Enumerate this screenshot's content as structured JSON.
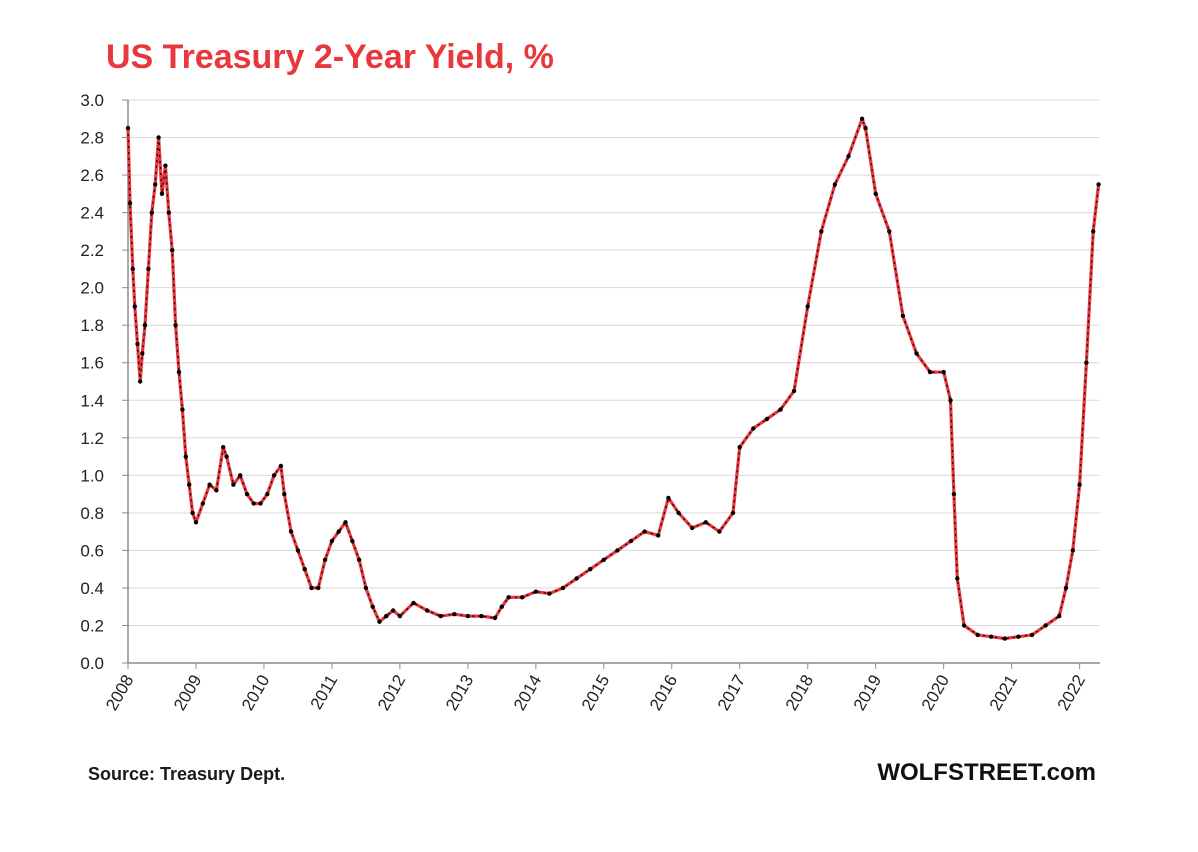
{
  "chart_data": {
    "type": "line",
    "title": "US Treasury 2-Year Yield, %",
    "xlabel": "",
    "ylabel": "",
    "xlim": [
      2008.0,
      2022.3
    ],
    "ylim": [
      0,
      3.0
    ],
    "y_ticks": [
      "0.0",
      "0.2",
      "0.4",
      "0.6",
      "0.8",
      "1.0",
      "1.2",
      "1.4",
      "1.6",
      "1.8",
      "2.0",
      "2.2",
      "2.4",
      "2.6",
      "2.8",
      "3.0"
    ],
    "x_ticks": [
      "2008",
      "2009",
      "2010",
      "2011",
      "2012",
      "2013",
      "2014",
      "2015",
      "2016",
      "2017",
      "2018",
      "2019",
      "2020",
      "2021",
      "2022"
    ],
    "grid": true,
    "legend": "none",
    "colors": {
      "title": "#e8383d",
      "line": "#e8383d",
      "markers": "#000000",
      "grid": "#d9d9d9",
      "axis": "#8c8c8c"
    },
    "series": [
      {
        "x": [
          2008.0,
          2008.03,
          2008.07,
          2008.1,
          2008.14,
          2008.18,
          2008.21,
          2008.25,
          2008.3,
          2008.35,
          2008.4,
          2008.45,
          2008.5,
          2008.55,
          2008.6,
          2008.65,
          2008.7,
          2008.75,
          2008.8,
          2008.85,
          2008.9,
          2008.95,
          2009.0,
          2009.1,
          2009.2,
          2009.3,
          2009.4,
          2009.45,
          2009.55,
          2009.65,
          2009.75,
          2009.85,
          2009.95,
          2010.05,
          2010.15,
          2010.25,
          2010.3,
          2010.4,
          2010.5,
          2010.6,
          2010.7,
          2010.8,
          2010.9,
          2011.0,
          2011.1,
          2011.2,
          2011.3,
          2011.4,
          2011.5,
          2011.6,
          2011.7,
          2011.8,
          2011.9,
          2012.0,
          2012.2,
          2012.4,
          2012.6,
          2012.8,
          2013.0,
          2013.2,
          2013.4,
          2013.5,
          2013.6,
          2013.8,
          2014.0,
          2014.2,
          2014.4,
          2014.6,
          2014.8,
          2015.0,
          2015.2,
          2015.4,
          2015.6,
          2015.8,
          2015.95,
          2016.1,
          2016.3,
          2016.5,
          2016.7,
          2016.9,
          2017.0,
          2017.2,
          2017.4,
          2017.6,
          2017.8,
          2018.0,
          2018.2,
          2018.4,
          2018.6,
          2018.8,
          2018.85,
          2019.0,
          2019.2,
          2019.4,
          2019.6,
          2019.8,
          2020.0,
          2020.1,
          2020.15,
          2020.2,
          2020.3,
          2020.5,
          2020.7,
          2020.9,
          2021.1,
          2021.3,
          2021.5,
          2021.7,
          2021.8,
          2021.9,
          2022.0,
          2022.1,
          2022.2,
          2022.28
        ],
        "values": [
          2.85,
          2.45,
          2.1,
          1.9,
          1.7,
          1.5,
          1.65,
          1.8,
          2.1,
          2.4,
          2.55,
          2.8,
          2.5,
          2.65,
          2.4,
          2.2,
          1.8,
          1.55,
          1.35,
          1.1,
          0.95,
          0.8,
          0.75,
          0.85,
          0.95,
          0.92,
          1.15,
          1.1,
          0.95,
          1.0,
          0.9,
          0.85,
          0.85,
          0.9,
          1.0,
          1.05,
          0.9,
          0.7,
          0.6,
          0.5,
          0.4,
          0.4,
          0.55,
          0.65,
          0.7,
          0.75,
          0.65,
          0.55,
          0.4,
          0.3,
          0.22,
          0.25,
          0.28,
          0.25,
          0.32,
          0.28,
          0.25,
          0.26,
          0.25,
          0.25,
          0.24,
          0.3,
          0.35,
          0.35,
          0.38,
          0.37,
          0.4,
          0.45,
          0.5,
          0.55,
          0.6,
          0.65,
          0.7,
          0.68,
          0.88,
          0.8,
          0.72,
          0.75,
          0.7,
          0.8,
          1.15,
          1.25,
          1.3,
          1.35,
          1.45,
          1.9,
          2.3,
          2.55,
          2.7,
          2.9,
          2.85,
          2.5,
          2.3,
          1.85,
          1.65,
          1.55,
          1.55,
          1.4,
          0.9,
          0.45,
          0.2,
          0.15,
          0.14,
          0.13,
          0.14,
          0.15,
          0.2,
          0.25,
          0.4,
          0.6,
          0.95,
          1.6,
          2.3,
          2.55
        ]
      }
    ]
  },
  "footer": {
    "source": "Source: Treasury Dept.",
    "brand": "WOLFSTREET.com"
  }
}
